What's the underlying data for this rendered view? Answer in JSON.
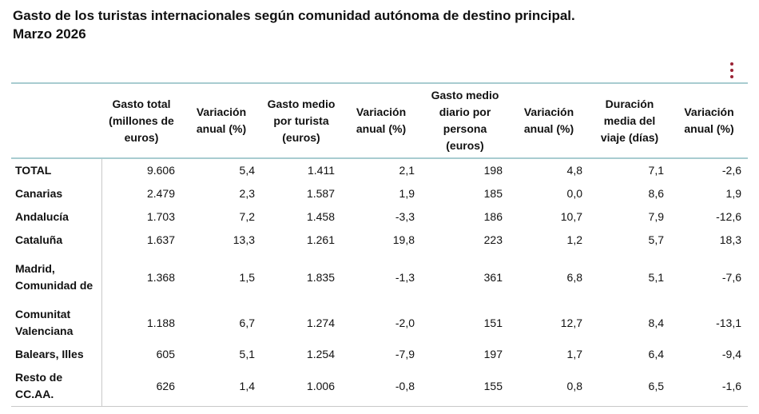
{
  "title_line1": "Gasto de los turistas internacionales según comunidad autónoma de destino principal.",
  "title_line2": "Marzo 2026",
  "columns": [
    "",
    "Gasto total (millones de euros)",
    "Variación anual (%)",
    "Gasto medio por turista (euros)",
    "Variación anual (%)",
    "Gasto medio diario por persona (euros)",
    "Variación anual (%)",
    "Duración media del viaje (días)",
    "Variación anual (%)"
  ],
  "rows": [
    {
      "label": "TOTAL",
      "values": [
        "9.606",
        "5,4",
        "1.411",
        "2,1",
        "198",
        "4,8",
        "7,1",
        "-2,6"
      ]
    },
    {
      "label": "Canarias",
      "values": [
        "2.479",
        "2,3",
        "1.587",
        "1,9",
        "185",
        "0,0",
        "8,6",
        "1,9"
      ]
    },
    {
      "label": "Andalucía",
      "values": [
        "1.703",
        "7,2",
        "1.458",
        "-3,3",
        "186",
        "10,7",
        "7,9",
        "-12,6"
      ]
    },
    {
      "label": "Cataluña",
      "values": [
        "1.637",
        "13,3",
        "1.261",
        "19,8",
        "223",
        "1,2",
        "5,7",
        "18,3"
      ]
    },
    {
      "label": "Madrid, Comunidad de",
      "values": [
        "1.368",
        "1,5",
        "1.835",
        "-1,3",
        "361",
        "6,8",
        "5,1",
        "-7,6"
      ]
    },
    {
      "label": "Comunitat Valenciana",
      "values": [
        "1.188",
        "6,7",
        "1.274",
        "-2,0",
        "151",
        "12,7",
        "8,4",
        "-13,1"
      ]
    },
    {
      "label": "Balears, Illes",
      "values": [
        "605",
        "5,1",
        "1.254",
        "-7,9",
        "197",
        "1,7",
        "6,4",
        "-9,4"
      ]
    },
    {
      "label": "Resto de CC.AA.",
      "values": [
        "626",
        "1,4",
        "1.006",
        "-0,8",
        "155",
        "0,8",
        "6,5",
        "-1,6"
      ]
    }
  ],
  "menu_icon": "kebab-menu-icon",
  "accent_color": "#9b2335"
}
